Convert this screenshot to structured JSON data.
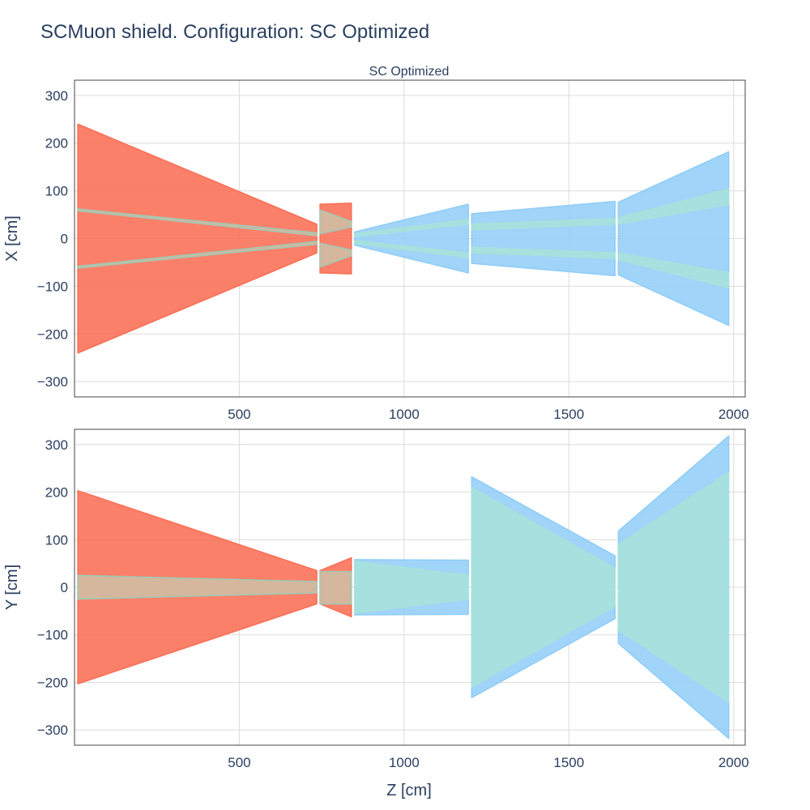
{
  "title": "SCMuon shield. Configuration: SC Optimized",
  "subplot_title": "SC Optimized",
  "colors": {
    "warm": "#fa6e54",
    "warm_core": "#d2b9a0",
    "warm_core_edge": "#9ccab6",
    "cold": "#8fcdf7",
    "cold_core": "#a6e2dc",
    "grid": "#dcdcdc",
    "axis_line": "#444444"
  },
  "chart_data": [
    {
      "type": "area",
      "panel": "top",
      "xlabel": "",
      "ylabel": "X [cm]",
      "xlim": [
        0,
        2035
      ],
      "ylim": [
        -332,
        332
      ],
      "xticks": [
        500,
        1000,
        1500,
        2000
      ],
      "xtick_labels": [
        "500",
        "1000",
        "1500",
        "2000"
      ],
      "yticks": [
        300,
        200,
        100,
        0,
        -100,
        -200,
        -300
      ],
      "ytick_labels": [
        "300",
        "200",
        "100",
        "0",
        "−100",
        "−200",
        "−300"
      ],
      "grid": true,
      "series": [
        {
          "kind": "warm",
          "points": [
            [
              10,
              240
            ],
            [
              735,
              30
            ],
            [
              735,
              -30
            ],
            [
              10,
              -240
            ]
          ]
        },
        {
          "kind": "warm-core",
          "points": [
            [
              10,
              62
            ],
            [
              735,
              12
            ],
            [
              735,
              6
            ],
            [
              10,
              58
            ]
          ]
        },
        {
          "kind": "warm-core",
          "points": [
            [
              10,
              -58
            ],
            [
              735,
              -6
            ],
            [
              735,
              -12
            ],
            [
              10,
              -62
            ]
          ]
        },
        {
          "kind": "warm",
          "points": [
            [
              745,
              72
            ],
            [
              840,
              74
            ],
            [
              840,
              -74
            ],
            [
              745,
              -72
            ]
          ]
        },
        {
          "kind": "warm-core",
          "points": [
            [
              745,
              60
            ],
            [
              840,
              36
            ],
            [
              840,
              24
            ],
            [
              745,
              10
            ]
          ]
        },
        {
          "kind": "warm-core",
          "points": [
            [
              745,
              -10
            ],
            [
              840,
              -24
            ],
            [
              840,
              -36
            ],
            [
              745,
              -60
            ]
          ]
        },
        {
          "kind": "cold",
          "points": [
            [
              850,
              14
            ],
            [
              1195,
              72
            ],
            [
              1195,
              -72
            ],
            [
              850,
              -14
            ]
          ]
        },
        {
          "kind": "cold-core",
          "points": [
            [
              850,
              10
            ],
            [
              1195,
              40
            ],
            [
              1195,
              30
            ],
            [
              850,
              4
            ]
          ]
        },
        {
          "kind": "cold-core",
          "points": [
            [
              850,
              -4
            ],
            [
              1195,
              -30
            ],
            [
              1195,
              -40
            ],
            [
              850,
              -10
            ]
          ]
        },
        {
          "kind": "cold",
          "points": [
            [
              1205,
              52
            ],
            [
              1640,
              78
            ],
            [
              1640,
              -78
            ],
            [
              1205,
              -52
            ]
          ]
        },
        {
          "kind": "cold-core",
          "points": [
            [
              1205,
              30
            ],
            [
              1640,
              42
            ],
            [
              1640,
              30
            ],
            [
              1205,
              18
            ]
          ]
        },
        {
          "kind": "cold-core",
          "points": [
            [
              1205,
              -18
            ],
            [
              1640,
              -30
            ],
            [
              1640,
              -42
            ],
            [
              1205,
              -30
            ]
          ]
        },
        {
          "kind": "cold",
          "points": [
            [
              1650,
              76
            ],
            [
              1985,
              182
            ],
            [
              1985,
              -182
            ],
            [
              1650,
              -76
            ]
          ]
        },
        {
          "kind": "cold-core",
          "points": [
            [
              1650,
              44
            ],
            [
              1985,
              104
            ],
            [
              1985,
              72
            ],
            [
              1650,
              30
            ]
          ]
        },
        {
          "kind": "cold-core",
          "points": [
            [
              1650,
              -30
            ],
            [
              1985,
              -72
            ],
            [
              1985,
              -104
            ],
            [
              1650,
              -44
            ]
          ]
        }
      ]
    },
    {
      "type": "area",
      "panel": "bottom",
      "xlabel": "Z [cm]",
      "ylabel": "Y [cm]",
      "xlim": [
        0,
        2035
      ],
      "ylim": [
        -332,
        332
      ],
      "xticks": [
        500,
        1000,
        1500,
        2000
      ],
      "xtick_labels": [
        "500",
        "1000",
        "1500",
        "2000"
      ],
      "yticks": [
        300,
        200,
        100,
        0,
        -100,
        -200,
        -300
      ],
      "ytick_labels": [
        "300",
        "200",
        "100",
        "0",
        "−100",
        "−200",
        "−300"
      ],
      "grid": true,
      "series": [
        {
          "kind": "warm",
          "points": [
            [
              10,
              203
            ],
            [
              735,
              35
            ],
            [
              735,
              -35
            ],
            [
              10,
              -203
            ]
          ]
        },
        {
          "kind": "warm-core",
          "points": [
            [
              10,
              25
            ],
            [
              735,
              12
            ],
            [
              735,
              -12
            ],
            [
              10,
              -25
            ]
          ]
        },
        {
          "kind": "warm",
          "points": [
            [
              745,
              35
            ],
            [
              840,
              62
            ],
            [
              840,
              -62
            ],
            [
              745,
              -35
            ]
          ]
        },
        {
          "kind": "warm-core",
          "points": [
            [
              745,
              33
            ],
            [
              840,
              33
            ],
            [
              840,
              -35
            ],
            [
              745,
              -35
            ]
          ]
        },
        {
          "kind": "cold",
          "points": [
            [
              850,
              58
            ],
            [
              1195,
              57
            ],
            [
              1195,
              -57
            ],
            [
              850,
              -58
            ]
          ]
        },
        {
          "kind": "cold-core",
          "points": [
            [
              850,
              55
            ],
            [
              1195,
              25
            ],
            [
              1195,
              -25
            ],
            [
              850,
              -55
            ]
          ]
        },
        {
          "kind": "cold",
          "points": [
            [
              1205,
              232
            ],
            [
              1640,
              66
            ],
            [
              1640,
              -66
            ],
            [
              1205,
              -232
            ]
          ]
        },
        {
          "kind": "cold-core",
          "points": [
            [
              1205,
              210
            ],
            [
              1640,
              40
            ],
            [
              1640,
              -40
            ],
            [
              1205,
              -210
            ]
          ]
        },
        {
          "kind": "cold",
          "points": [
            [
              1650,
              118
            ],
            [
              1985,
              318
            ],
            [
              1985,
              -318
            ],
            [
              1650,
              -118
            ]
          ]
        },
        {
          "kind": "cold-core",
          "points": [
            [
              1650,
              90
            ],
            [
              1985,
              242
            ],
            [
              1985,
              -242
            ],
            [
              1650,
              -90
            ]
          ]
        }
      ]
    }
  ]
}
